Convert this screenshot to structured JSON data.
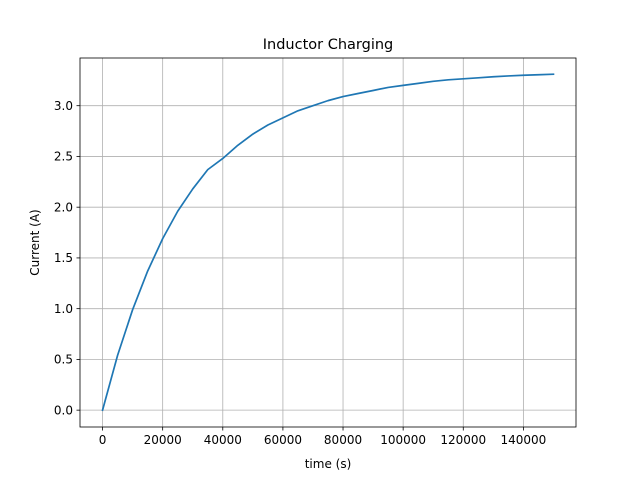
{
  "chart_data": {
    "type": "line",
    "title": "Inductor Charging",
    "xlabel": "time (s)",
    "ylabel": "Current (A)",
    "xlim": [
      -7500,
      157500
    ],
    "ylim": [
      -0.166,
      3.47
    ],
    "grid": true,
    "x_ticks": [
      0,
      20000,
      40000,
      60000,
      80000,
      100000,
      120000,
      140000
    ],
    "x_tick_labels": [
      "0",
      "20000",
      "40000",
      "60000",
      "80000",
      "100000",
      "120000",
      "140000"
    ],
    "y_ticks": [
      0.0,
      0.5,
      1.0,
      1.5,
      2.0,
      2.5,
      3.0
    ],
    "y_tick_labels": [
      "0.0",
      "0.5",
      "1.0",
      "1.5",
      "2.0",
      "2.5",
      "3.0"
    ],
    "series": [
      {
        "color": "#1f77b4",
        "x": [
          0,
          5000,
          10000,
          15000,
          20000,
          25000,
          30000,
          35000,
          40000,
          45000,
          50000,
          55000,
          60000,
          65000,
          70000,
          75000,
          80000,
          85000,
          90000,
          95000,
          100000,
          105000,
          110000,
          115000,
          120000,
          125000,
          130000,
          135000,
          140000,
          145000,
          150000
        ],
        "y": [
          0.0,
          0.54,
          0.99,
          1.37,
          1.69,
          1.96,
          2.18,
          2.37,
          2.48,
          2.61,
          2.72,
          2.81,
          2.88,
          2.95,
          3.0,
          3.05,
          3.09,
          3.12,
          3.15,
          3.18,
          3.2,
          3.22,
          3.24,
          3.255,
          3.265,
          3.275,
          3.285,
          3.293,
          3.3,
          3.305,
          3.31
        ]
      }
    ]
  }
}
